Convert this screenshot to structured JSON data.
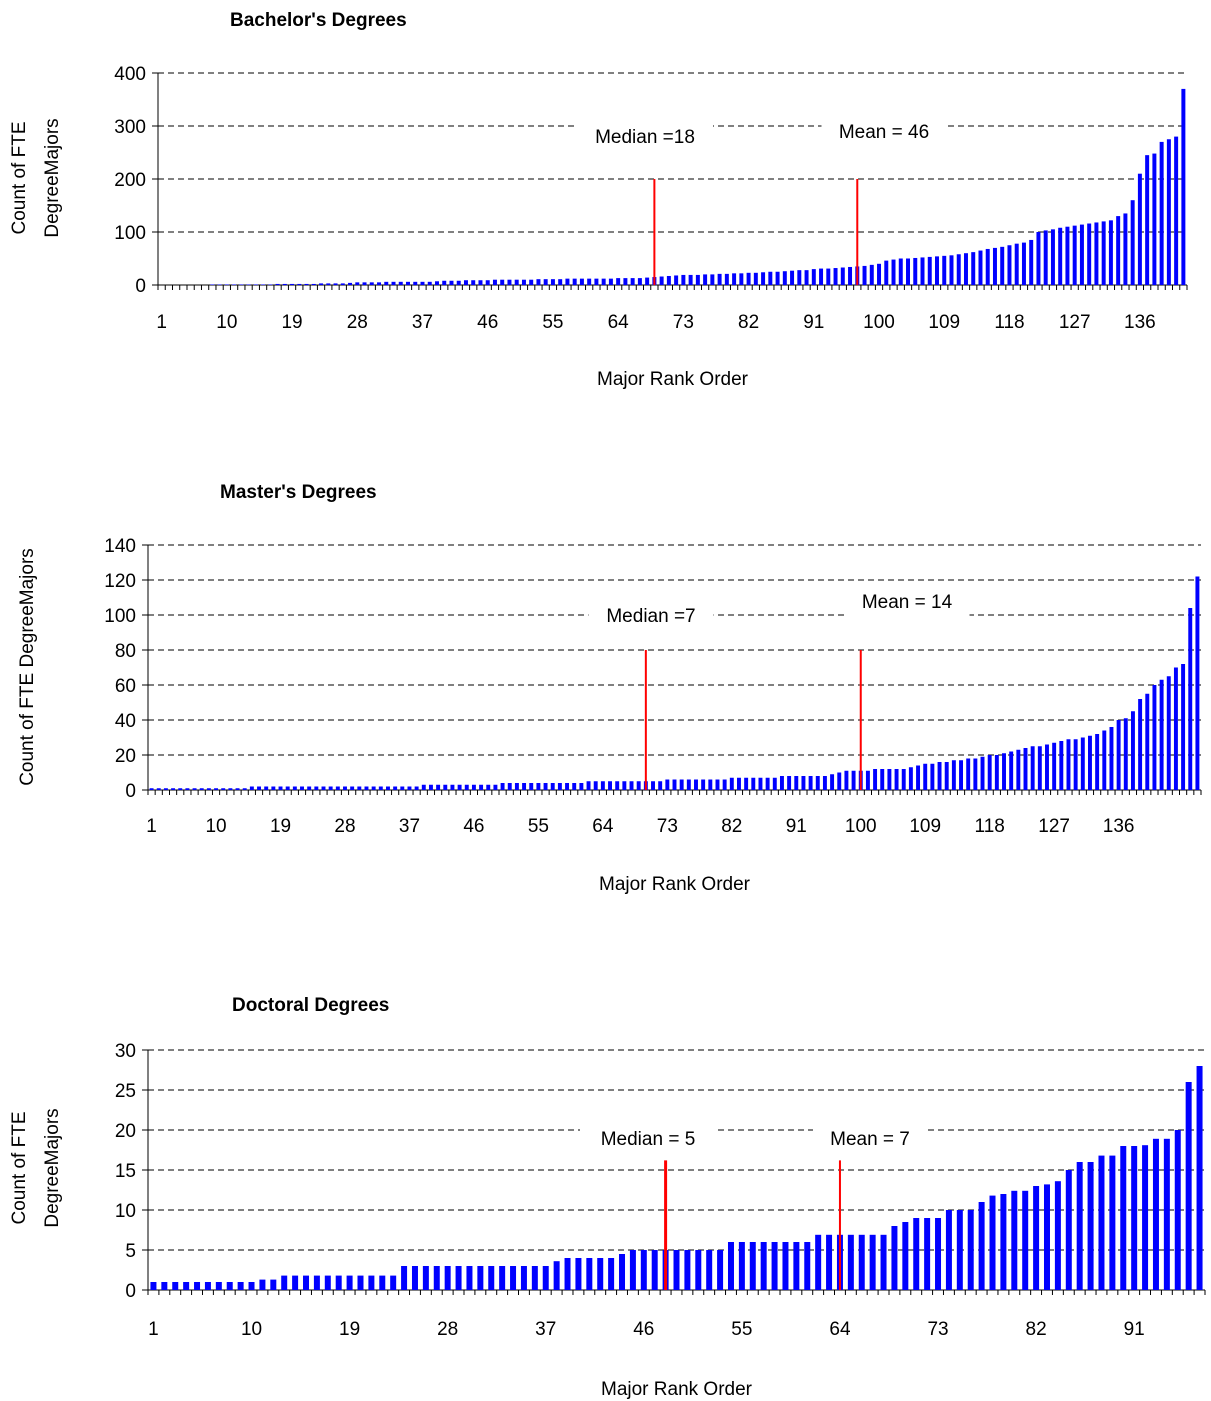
{
  "chart_data": [
    {
      "type": "bar",
      "title": "Bachelor's Degrees",
      "ylabel_lines": [
        "Count of FTE",
        "DegreeMajors"
      ],
      "xlabel": "Major Rank Order",
      "ylim": [
        0,
        400
      ],
      "yticks": [
        0,
        100,
        200,
        300,
        400
      ],
      "xtick_labels": [
        "1",
        "10",
        "19",
        "28",
        "37",
        "46",
        "55",
        "64",
        "73",
        "82",
        "91",
        "100",
        "109",
        "118",
        "127",
        "136"
      ],
      "grid": "dashed horizontal",
      "bar_color": "#0000ff",
      "marker_color": "#ff0000",
      "series": [
        {
          "values": [
            0,
            0,
            0,
            0,
            0,
            0,
            0,
            1,
            1,
            1,
            1,
            1,
            1,
            1,
            1,
            1,
            2,
            2,
            2,
            2,
            2,
            2,
            3,
            3,
            3,
            3,
            4,
            5,
            5,
            5,
            5,
            6,
            6,
            6,
            6,
            6,
            6,
            6,
            7,
            8,
            8,
            8,
            9,
            9,
            9,
            9,
            10,
            10,
            10,
            10,
            10,
            10,
            11,
            11,
            11,
            11,
            12,
            12,
            12,
            12,
            12,
            12,
            12,
            13,
            13,
            13,
            13,
            14,
            15,
            16,
            17,
            18,
            19,
            19,
            19,
            20,
            20,
            21,
            21,
            22,
            22,
            23,
            23,
            24,
            25,
            25,
            26,
            27,
            28,
            28,
            30,
            31,
            31,
            32,
            33,
            34,
            35,
            36,
            38,
            40,
            46,
            48,
            50,
            50,
            51,
            52,
            53,
            54,
            55,
            56,
            58,
            60,
            62,
            65,
            68,
            70,
            72,
            75,
            78,
            80,
            85,
            100,
            103,
            105,
            108,
            110,
            112,
            114,
            116,
            118,
            120,
            122,
            130,
            135,
            160,
            210,
            245,
            248,
            270,
            275,
            280,
            370
          ]
        }
      ],
      "markers": [
        {
          "label": "Median =18",
          "x": 69,
          "height": 200
        },
        {
          "label": "Mean = 46",
          "x": 97,
          "height": 200
        }
      ]
    },
    {
      "type": "bar",
      "title": "Master's Degrees",
      "ylabel_lines": [
        "Count of FTE DegreeMajors"
      ],
      "xlabel": "Major Rank Order",
      "ylim": [
        0,
        140
      ],
      "yticks": [
        0,
        20,
        40,
        60,
        80,
        100,
        120,
        140
      ],
      "xtick_labels": [
        "1",
        "10",
        "19",
        "28",
        "37",
        "46",
        "55",
        "64",
        "73",
        "82",
        "91",
        "100",
        "109",
        "118",
        "127",
        "136"
      ],
      "grid": "dashed horizontal",
      "bar_color": "#0000ff",
      "marker_color": "#ff0000",
      "series": [
        {
          "values": [
            1,
            1,
            1,
            1,
            1,
            1,
            1,
            1,
            1,
            1,
            1,
            1,
            1,
            1,
            2,
            2,
            2,
            2,
            2,
            2,
            2,
            2,
            2,
            2,
            2,
            2,
            2,
            2,
            2,
            2,
            2,
            2,
            2,
            2,
            2,
            2,
            2,
            2,
            3,
            3,
            3,
            3,
            3,
            3,
            3,
            3,
            3,
            3,
            3,
            4,
            4,
            4,
            4,
            4,
            4,
            4,
            4,
            4,
            4,
            4,
            4,
            5,
            5,
            5,
            5,
            5,
            5,
            5,
            5,
            5,
            5,
            5,
            6,
            6,
            6,
            6,
            6,
            6,
            6,
            6,
            6,
            7,
            7,
            7,
            7,
            7,
            7,
            7,
            8,
            8,
            8,
            8,
            8,
            8,
            8,
            9,
            10,
            11,
            11,
            11,
            11,
            12,
            12,
            12,
            12,
            12,
            13,
            14,
            15,
            15,
            16,
            16,
            17,
            17,
            18,
            18,
            19,
            20,
            20,
            21,
            22,
            23,
            24,
            25,
            25,
            26,
            27,
            28,
            29,
            29,
            30,
            31,
            32,
            34,
            36,
            40,
            41,
            45,
            52,
            55,
            60,
            63,
            65,
            70,
            72,
            104,
            122
          ]
        }
      ],
      "markers": [
        {
          "label": "Median =7",
          "x": 70,
          "height": 80
        },
        {
          "label": "Mean = 14",
          "x": 100,
          "height": 80
        }
      ]
    },
    {
      "type": "bar",
      "title": "Doctoral Degrees",
      "ylabel_lines": [
        "Count of FTE",
        "DegreeMajors"
      ],
      "xlabel": "Major Rank Order",
      "ylim": [
        0,
        30
      ],
      "yticks": [
        0,
        5,
        10,
        15,
        20,
        25,
        30
      ],
      "xtick_labels": [
        "1",
        "10",
        "19",
        "28",
        "37",
        "46",
        "55",
        "64",
        "73",
        "82",
        "91"
      ],
      "grid": "dashed horizontal",
      "bar_color": "#0000ff",
      "marker_color": "#ff0000",
      "series": [
        {
          "values": [
            1,
            1,
            1,
            1,
            1,
            1,
            1,
            1,
            1,
            1,
            1.3,
            1.3,
            1.8,
            1.8,
            1.8,
            1.8,
            1.8,
            1.8,
            1.8,
            1.8,
            1.8,
            1.8,
            1.8,
            3,
            3,
            3,
            3,
            3,
            3,
            3,
            3,
            3,
            3,
            3,
            3,
            3,
            3,
            3.6,
            4,
            4,
            4,
            4,
            4,
            4.5,
            5,
            5,
            5,
            5,
            5,
            5,
            5,
            5,
            5,
            6,
            6,
            6,
            6,
            6,
            6,
            6,
            6,
            6.9,
            6.9,
            6.9,
            6.9,
            6.9,
            6.9,
            6.9,
            8,
            8.5,
            9,
            9,
            9,
            10,
            10,
            10,
            11,
            11.8,
            12,
            12.4,
            12.4,
            13,
            13.2,
            13.6,
            15,
            16,
            16,
            16.8,
            16.8,
            18,
            18,
            18.1,
            18.9,
            18.9,
            20,
            26,
            28
          ]
        }
      ],
      "markers": [
        {
          "label": "Median = 5",
          "x": 48,
          "height": 16.2
        },
        {
          "label": "Mean = 7",
          "x": 64,
          "height": 16.2
        }
      ]
    }
  ]
}
